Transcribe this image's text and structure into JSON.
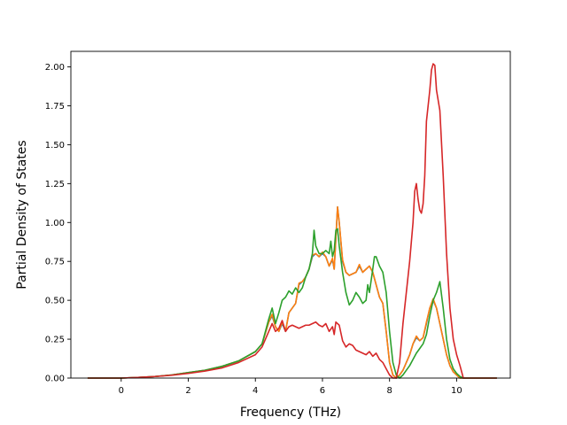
{
  "chart_data": {
    "type": "line",
    "title": "",
    "xlabel": "Frequency (THz)",
    "ylabel": "Partial Density of States",
    "xlim": [
      -1.5,
      11.6
    ],
    "ylim": [
      0,
      2.1
    ],
    "x_ticks": [
      0,
      2,
      4,
      6,
      8,
      10
    ],
    "x_tick_labels": [
      "0",
      "2",
      "4",
      "6",
      "8",
      "10"
    ],
    "y_ticks": [
      0,
      0.25,
      0.5,
      0.75,
      1.0,
      1.25,
      1.5,
      1.75,
      2.0
    ],
    "y_tick_labels": [
      "0.00",
      "0.25",
      "0.50",
      "0.75",
      "1.00",
      "1.25",
      "1.50",
      "1.75",
      "2.00"
    ],
    "grid": false,
    "legend": "none",
    "series": [
      {
        "color": "#1f77b4",
        "points": [
          [
            -1.0,
            0
          ],
          [
            0,
            0
          ],
          [
            0.5,
            0.004
          ],
          [
            1.0,
            0.01
          ],
          [
            1.5,
            0.02
          ],
          [
            2.0,
            0.035
          ],
          [
            2.5,
            0.05
          ],
          [
            3.0,
            0.075
          ],
          [
            3.5,
            0.11
          ],
          [
            4.0,
            0.17
          ],
          [
            4.2,
            0.22
          ],
          [
            4.4,
            0.36
          ],
          [
            4.5,
            0.4
          ],
          [
            4.6,
            0.33
          ],
          [
            4.7,
            0.3
          ],
          [
            4.8,
            0.35
          ],
          [
            4.9,
            0.3
          ],
          [
            5.0,
            0.42
          ],
          [
            5.1,
            0.45
          ],
          [
            5.2,
            0.48
          ],
          [
            5.3,
            0.6
          ],
          [
            5.4,
            0.62
          ],
          [
            5.5,
            0.65
          ],
          [
            5.6,
            0.7
          ],
          [
            5.7,
            0.78
          ],
          [
            5.8,
            0.8
          ],
          [
            5.9,
            0.78
          ],
          [
            6.0,
            0.8
          ],
          [
            6.1,
            0.78
          ],
          [
            6.2,
            0.72
          ],
          [
            6.3,
            0.76
          ],
          [
            6.35,
            0.7
          ],
          [
            6.4,
            0.9
          ],
          [
            6.45,
            1.1
          ],
          [
            6.5,
            1.0
          ],
          [
            6.6,
            0.75
          ],
          [
            6.7,
            0.68
          ],
          [
            6.8,
            0.66
          ],
          [
            6.9,
            0.67
          ],
          [
            7.0,
            0.68
          ],
          [
            7.1,
            0.72
          ],
          [
            7.2,
            0.68
          ],
          [
            7.3,
            0.7
          ],
          [
            7.4,
            0.72
          ],
          [
            7.5,
            0.68
          ],
          [
            7.6,
            0.6
          ],
          [
            7.7,
            0.52
          ],
          [
            7.8,
            0.48
          ],
          [
            7.9,
            0.3
          ],
          [
            8.0,
            0.1
          ],
          [
            8.1,
            0.02
          ],
          [
            8.2,
            0.0
          ],
          [
            8.3,
            0.02
          ],
          [
            8.4,
            0.05
          ],
          [
            8.5,
            0.1
          ],
          [
            8.6,
            0.15
          ],
          [
            8.7,
            0.22
          ],
          [
            8.8,
            0.26
          ],
          [
            8.9,
            0.24
          ],
          [
            9.0,
            0.26
          ],
          [
            9.1,
            0.35
          ],
          [
            9.2,
            0.45
          ],
          [
            9.3,
            0.5
          ],
          [
            9.4,
            0.45
          ],
          [
            9.5,
            0.35
          ],
          [
            9.6,
            0.25
          ],
          [
            9.7,
            0.15
          ],
          [
            9.8,
            0.08
          ],
          [
            9.9,
            0.04
          ],
          [
            10.0,
            0.02
          ],
          [
            10.1,
            0.0
          ],
          [
            11.2,
            0
          ]
        ]
      },
      {
        "color": "#ff7f0e",
        "points": [
          [
            -1.0,
            0
          ],
          [
            0,
            0
          ],
          [
            0.5,
            0.004
          ],
          [
            1.0,
            0.01
          ],
          [
            1.5,
            0.02
          ],
          [
            2.0,
            0.035
          ],
          [
            2.5,
            0.05
          ],
          [
            3.0,
            0.075
          ],
          [
            3.5,
            0.11
          ],
          [
            4.0,
            0.17
          ],
          [
            4.2,
            0.22
          ],
          [
            4.4,
            0.36
          ],
          [
            4.5,
            0.41
          ],
          [
            4.6,
            0.33
          ],
          [
            4.7,
            0.3
          ],
          [
            4.8,
            0.36
          ],
          [
            4.9,
            0.3
          ],
          [
            5.0,
            0.42
          ],
          [
            5.1,
            0.45
          ],
          [
            5.2,
            0.48
          ],
          [
            5.3,
            0.61
          ],
          [
            5.4,
            0.62
          ],
          [
            5.5,
            0.65
          ],
          [
            5.6,
            0.7
          ],
          [
            5.7,
            0.79
          ],
          [
            5.8,
            0.8
          ],
          [
            5.9,
            0.78
          ],
          [
            6.0,
            0.81
          ],
          [
            6.1,
            0.78
          ],
          [
            6.2,
            0.72
          ],
          [
            6.3,
            0.77
          ],
          [
            6.35,
            0.7
          ],
          [
            6.4,
            0.9
          ],
          [
            6.45,
            1.1
          ],
          [
            6.5,
            1.0
          ],
          [
            6.6,
            0.76
          ],
          [
            6.7,
            0.68
          ],
          [
            6.8,
            0.66
          ],
          [
            6.9,
            0.67
          ],
          [
            7.0,
            0.68
          ],
          [
            7.1,
            0.73
          ],
          [
            7.2,
            0.68
          ],
          [
            7.3,
            0.7
          ],
          [
            7.4,
            0.72
          ],
          [
            7.5,
            0.68
          ],
          [
            7.6,
            0.6
          ],
          [
            7.7,
            0.52
          ],
          [
            7.8,
            0.48
          ],
          [
            7.9,
            0.3
          ],
          [
            8.0,
            0.1
          ],
          [
            8.1,
            0.02
          ],
          [
            8.2,
            0.0
          ],
          [
            8.3,
            0.02
          ],
          [
            8.4,
            0.05
          ],
          [
            8.5,
            0.1
          ],
          [
            8.6,
            0.15
          ],
          [
            8.7,
            0.22
          ],
          [
            8.8,
            0.27
          ],
          [
            8.9,
            0.24
          ],
          [
            9.0,
            0.26
          ],
          [
            9.1,
            0.36
          ],
          [
            9.2,
            0.45
          ],
          [
            9.3,
            0.51
          ],
          [
            9.4,
            0.45
          ],
          [
            9.5,
            0.35
          ],
          [
            9.6,
            0.25
          ],
          [
            9.7,
            0.15
          ],
          [
            9.8,
            0.08
          ],
          [
            9.9,
            0.04
          ],
          [
            10.0,
            0.02
          ],
          [
            10.1,
            0.0
          ],
          [
            11.2,
            0
          ]
        ]
      },
      {
        "color": "#2ca02c",
        "points": [
          [
            -1.0,
            0
          ],
          [
            0,
            0
          ],
          [
            0.5,
            0.004
          ],
          [
            1.0,
            0.01
          ],
          [
            1.5,
            0.02
          ],
          [
            2.0,
            0.035
          ],
          [
            2.5,
            0.05
          ],
          [
            3.0,
            0.075
          ],
          [
            3.5,
            0.11
          ],
          [
            4.0,
            0.17
          ],
          [
            4.2,
            0.22
          ],
          [
            4.4,
            0.38
          ],
          [
            4.5,
            0.45
          ],
          [
            4.6,
            0.35
          ],
          [
            4.7,
            0.42
          ],
          [
            4.8,
            0.5
          ],
          [
            4.9,
            0.52
          ],
          [
            5.0,
            0.56
          ],
          [
            5.1,
            0.54
          ],
          [
            5.2,
            0.58
          ],
          [
            5.3,
            0.55
          ],
          [
            5.4,
            0.58
          ],
          [
            5.5,
            0.65
          ],
          [
            5.6,
            0.7
          ],
          [
            5.7,
            0.8
          ],
          [
            5.75,
            0.95
          ],
          [
            5.8,
            0.85
          ],
          [
            5.9,
            0.8
          ],
          [
            6.0,
            0.8
          ],
          [
            6.1,
            0.82
          ],
          [
            6.2,
            0.8
          ],
          [
            6.25,
            0.88
          ],
          [
            6.3,
            0.78
          ],
          [
            6.35,
            0.82
          ],
          [
            6.4,
            0.95
          ],
          [
            6.45,
            0.96
          ],
          [
            6.5,
            0.85
          ],
          [
            6.6,
            0.68
          ],
          [
            6.7,
            0.55
          ],
          [
            6.8,
            0.47
          ],
          [
            6.9,
            0.5
          ],
          [
            7.0,
            0.55
          ],
          [
            7.1,
            0.52
          ],
          [
            7.2,
            0.48
          ],
          [
            7.3,
            0.5
          ],
          [
            7.35,
            0.6
          ],
          [
            7.4,
            0.55
          ],
          [
            7.5,
            0.7
          ],
          [
            7.55,
            0.78
          ],
          [
            7.6,
            0.78
          ],
          [
            7.7,
            0.72
          ],
          [
            7.8,
            0.68
          ],
          [
            7.9,
            0.55
          ],
          [
            8.0,
            0.3
          ],
          [
            8.1,
            0.1
          ],
          [
            8.2,
            0.02
          ],
          [
            8.3,
            0.0
          ],
          [
            8.4,
            0.02
          ],
          [
            8.5,
            0.05
          ],
          [
            8.6,
            0.08
          ],
          [
            8.7,
            0.12
          ],
          [
            8.8,
            0.16
          ],
          [
            8.9,
            0.19
          ],
          [
            9.0,
            0.22
          ],
          [
            9.1,
            0.28
          ],
          [
            9.2,
            0.4
          ],
          [
            9.3,
            0.5
          ],
          [
            9.4,
            0.55
          ],
          [
            9.5,
            0.62
          ],
          [
            9.6,
            0.45
          ],
          [
            9.7,
            0.25
          ],
          [
            9.8,
            0.12
          ],
          [
            9.9,
            0.06
          ],
          [
            10.0,
            0.03
          ],
          [
            10.1,
            0.01
          ],
          [
            10.2,
            0.0
          ],
          [
            11.2,
            0
          ]
        ]
      },
      {
        "color": "#d62728",
        "points": [
          [
            -1.0,
            0
          ],
          [
            0,
            0
          ],
          [
            0.5,
            0.004
          ],
          [
            1.0,
            0.01
          ],
          [
            1.5,
            0.018
          ],
          [
            2.0,
            0.03
          ],
          [
            2.5,
            0.045
          ],
          [
            3.0,
            0.065
          ],
          [
            3.5,
            0.1
          ],
          [
            4.0,
            0.15
          ],
          [
            4.2,
            0.2
          ],
          [
            4.4,
            0.3
          ],
          [
            4.5,
            0.35
          ],
          [
            4.6,
            0.3
          ],
          [
            4.7,
            0.32
          ],
          [
            4.8,
            0.37
          ],
          [
            4.9,
            0.3
          ],
          [
            5.0,
            0.33
          ],
          [
            5.1,
            0.34
          ],
          [
            5.2,
            0.33
          ],
          [
            5.3,
            0.32
          ],
          [
            5.4,
            0.33
          ],
          [
            5.5,
            0.34
          ],
          [
            5.6,
            0.34
          ],
          [
            5.7,
            0.35
          ],
          [
            5.8,
            0.36
          ],
          [
            5.9,
            0.34
          ],
          [
            6.0,
            0.33
          ],
          [
            6.1,
            0.35
          ],
          [
            6.2,
            0.3
          ],
          [
            6.3,
            0.33
          ],
          [
            6.35,
            0.28
          ],
          [
            6.4,
            0.36
          ],
          [
            6.5,
            0.34
          ],
          [
            6.6,
            0.24
          ],
          [
            6.7,
            0.2
          ],
          [
            6.8,
            0.22
          ],
          [
            6.9,
            0.21
          ],
          [
            7.0,
            0.18
          ],
          [
            7.1,
            0.17
          ],
          [
            7.2,
            0.16
          ],
          [
            7.3,
            0.15
          ],
          [
            7.4,
            0.17
          ],
          [
            7.5,
            0.14
          ],
          [
            7.6,
            0.16
          ],
          [
            7.7,
            0.12
          ],
          [
            7.8,
            0.1
          ],
          [
            7.9,
            0.06
          ],
          [
            8.0,
            0.02
          ],
          [
            8.1,
            0.0
          ],
          [
            8.2,
            0.0
          ],
          [
            8.3,
            0.1
          ],
          [
            8.4,
            0.35
          ],
          [
            8.5,
            0.55
          ],
          [
            8.6,
            0.75
          ],
          [
            8.7,
            1.0
          ],
          [
            8.75,
            1.2
          ],
          [
            8.8,
            1.25
          ],
          [
            8.85,
            1.15
          ],
          [
            8.9,
            1.08
          ],
          [
            8.95,
            1.06
          ],
          [
            9.0,
            1.12
          ],
          [
            9.05,
            1.3
          ],
          [
            9.1,
            1.65
          ],
          [
            9.2,
            1.85
          ],
          [
            9.25,
            1.98
          ],
          [
            9.3,
            2.02
          ],
          [
            9.35,
            2.01
          ],
          [
            9.4,
            1.85
          ],
          [
            9.5,
            1.72
          ],
          [
            9.6,
            1.3
          ],
          [
            9.7,
            0.8
          ],
          [
            9.8,
            0.45
          ],
          [
            9.9,
            0.25
          ],
          [
            10.0,
            0.15
          ],
          [
            10.1,
            0.08
          ],
          [
            10.2,
            0.0
          ],
          [
            11.2,
            0
          ]
        ]
      }
    ]
  }
}
